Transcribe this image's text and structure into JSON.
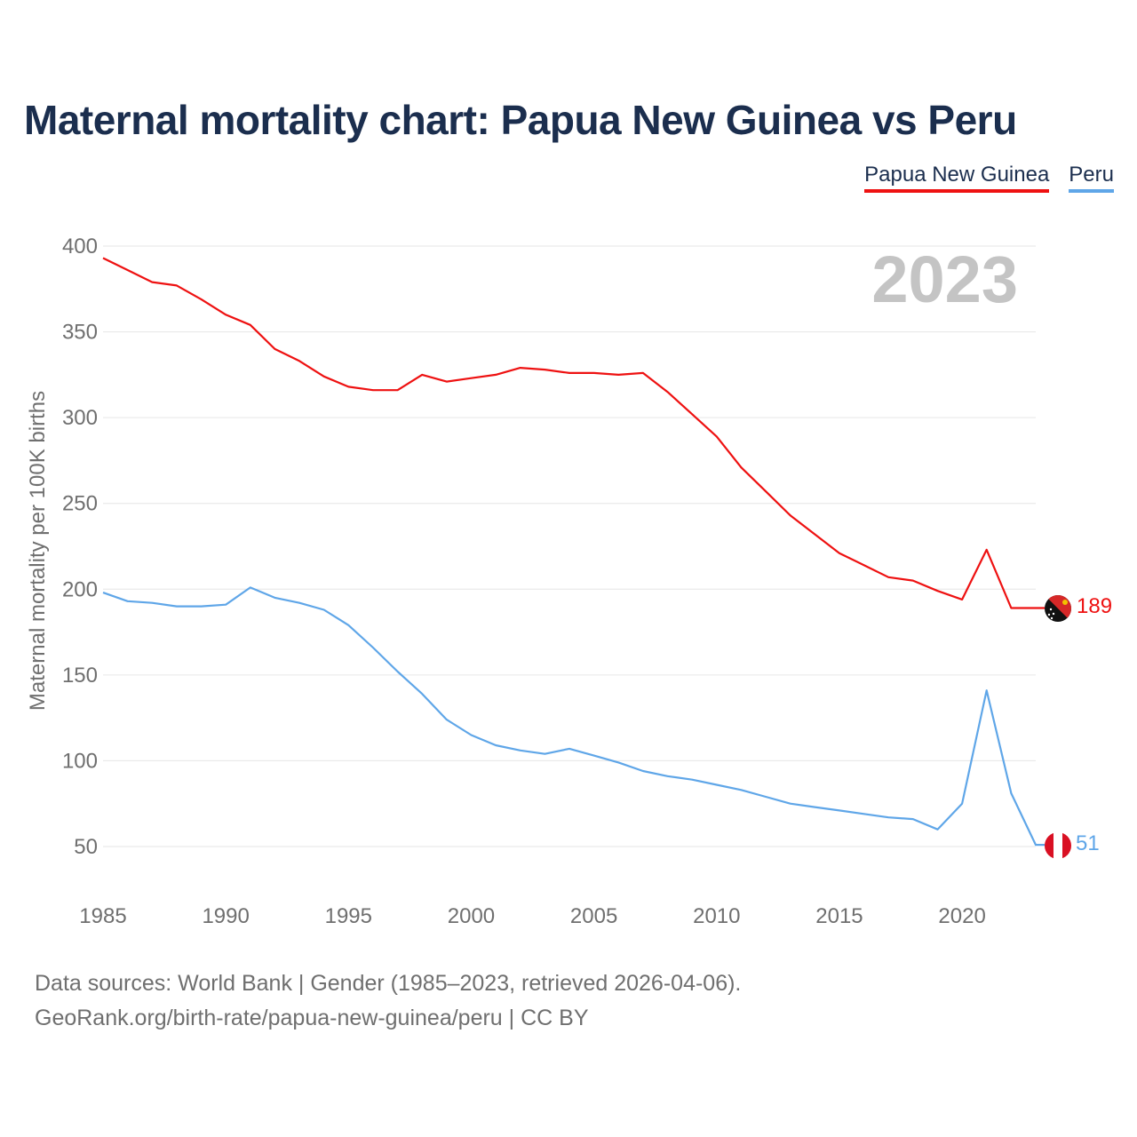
{
  "title": "Maternal mortality chart: Papua New Guinea vs Peru",
  "legend": {
    "png_label": "Papua New Guinea",
    "peru_label": "Peru"
  },
  "footer": {
    "line1": "Data sources: World Bank | Gender (1985–2023, retrieved 2026-04-06).",
    "line2": "GeoRank.org/birth-rate/papua-new-guinea/peru | CC BY"
  },
  "colors": {
    "png": "#ee1111",
    "peru": "#5fa6e8",
    "title": "#1b2e4e",
    "grid": "#e6e6e6",
    "axis_text": "#6f6f6f",
    "year_watermark": "#c4c4c4"
  },
  "chart_data": {
    "type": "line",
    "title": "Maternal mortality chart: Papua New Guinea vs Peru",
    "xlabel": "",
    "ylabel": "Maternal mortality per 100K births",
    "year_label": "2023",
    "x": [
      1985,
      1986,
      1987,
      1988,
      1989,
      1990,
      1991,
      1992,
      1993,
      1994,
      1995,
      1996,
      1997,
      1998,
      1999,
      2000,
      2001,
      2002,
      2003,
      2004,
      2005,
      2006,
      2007,
      2008,
      2009,
      2010,
      2011,
      2012,
      2013,
      2014,
      2015,
      2016,
      2017,
      2018,
      2019,
      2020,
      2021,
      2022,
      2023
    ],
    "xlim": [
      1985,
      2023
    ],
    "ylim": [
      30,
      400
    ],
    "x_ticks": [
      1985,
      1990,
      1995,
      2000,
      2005,
      2010,
      2015,
      2020
    ],
    "y_ticks": [
      50,
      100,
      150,
      200,
      250,
      300,
      350,
      400
    ],
    "grid": true,
    "series": [
      {
        "name": "Papua New Guinea",
        "end_label": "189",
        "values": [
          393,
          386,
          379,
          377,
          369,
          360,
          354,
          340,
          333,
          324,
          318,
          316,
          316,
          325,
          321,
          323,
          325,
          329,
          328,
          326,
          326,
          325,
          326,
          315,
          302,
          289,
          271,
          257,
          243,
          232,
          221,
          214,
          207,
          205,
          199,
          194,
          223,
          189,
          189
        ]
      },
      {
        "name": "Peru",
        "end_label": "51",
        "values": [
          198,
          193,
          192,
          190,
          190,
          191,
          201,
          195,
          192,
          188,
          179,
          166,
          152,
          139,
          124,
          115,
          109,
          106,
          104,
          107,
          103,
          99,
          94,
          91,
          89,
          86,
          83,
          79,
          75,
          73,
          71,
          69,
          67,
          66,
          60,
          75,
          141,
          81,
          51
        ]
      }
    ]
  }
}
